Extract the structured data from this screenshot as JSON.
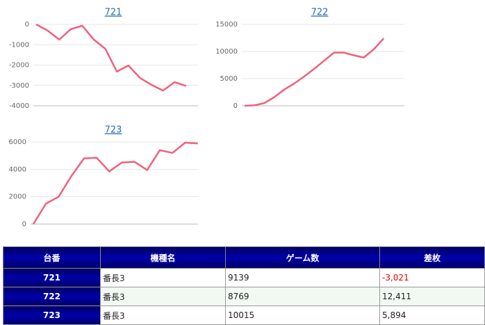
{
  "chart_data": [
    {
      "type": "line",
      "title": "721",
      "color": "#f0607c",
      "grid": true,
      "values": [
        0,
        -308,
        -750,
        -240,
        -70,
        -750,
        -1200,
        -2320,
        -2020,
        -2630,
        -2970,
        -3250,
        -2840,
        -3021
      ],
      "ylim": [
        -4000,
        0
      ],
      "yticks": [
        0,
        -1000,
        -2000,
        -3000,
        -4000
      ]
    },
    {
      "type": "line",
      "title": "722",
      "color": "#f0607c",
      "grid": true,
      "values": [
        0,
        100,
        500,
        1600,
        3000,
        4100,
        5400,
        6800,
        8300,
        9800,
        9800,
        9300,
        8900,
        10400,
        12411
      ],
      "ylim": [
        0,
        15000
      ],
      "yticks": [
        0,
        5000,
        10000,
        15000
      ]
    },
    {
      "type": "line",
      "title": "723",
      "color": "#f0607c",
      "grid": true,
      "values": [
        0,
        1500,
        2000,
        3500,
        4800,
        4850,
        3850,
        4500,
        4550,
        3950,
        5400,
        5200,
        5950,
        5894
      ],
      "ylim": [
        0,
        6000
      ],
      "yticks": [
        0,
        2000,
        4000,
        6000
      ]
    }
  ],
  "table": {
    "header": [
      "台番",
      "機種名",
      "ゲーム数",
      "差枚"
    ],
    "rows": [
      [
        "721",
        "番長3",
        "9139",
        "-3,021"
      ],
      [
        "722",
        "番長3",
        "8769",
        "12,411"
      ],
      [
        "723",
        "番長3",
        "10015",
        "5,894"
      ]
    ]
  }
}
